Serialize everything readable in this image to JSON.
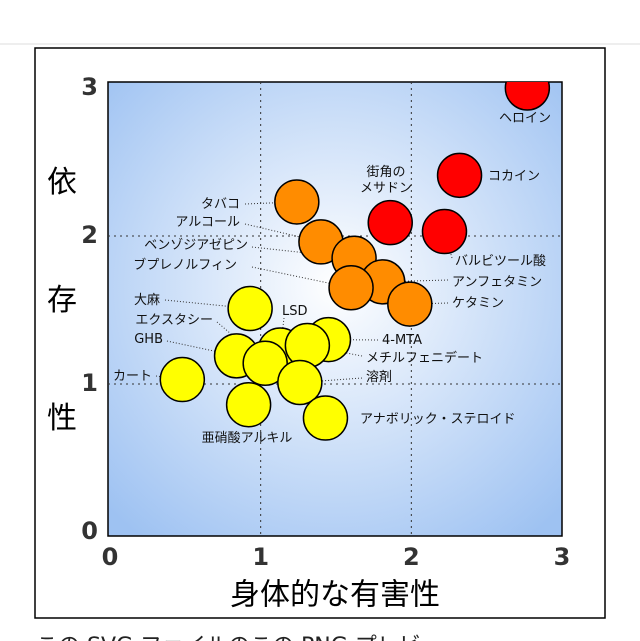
{
  "chart_data": {
    "type": "scatter",
    "xlabel": "身体的な有害性",
    "ylabel": "依存性",
    "xlim": [
      0,
      3
    ],
    "ylim": [
      0,
      3
    ],
    "xticks": [
      0,
      1,
      2,
      3
    ],
    "yticks": [
      0,
      1,
      2,
      3
    ],
    "grid": true,
    "points": [
      {
        "label": "ヘロイン",
        "x": 2.77,
        "y": 3.0,
        "color": "#ff0000"
      },
      {
        "label": "コカイン",
        "x": 2.32,
        "y": 2.41,
        "color": "#ff0000"
      },
      {
        "label": "街角の\nメサドン",
        "x": 1.86,
        "y": 2.09,
        "color": "#ff0000"
      },
      {
        "label": "バルビツール酸",
        "x": 2.22,
        "y": 2.03,
        "color": "#ff0000"
      },
      {
        "label": "タバコ",
        "x": 1.24,
        "y": 2.23,
        "color": "#ff8c00"
      },
      {
        "label": "アルコール",
        "x": 1.4,
        "y": 1.96,
        "color": "#ff8c00"
      },
      {
        "label": "ベンゾジアゼピン",
        "x": 1.62,
        "y": 1.85,
        "color": "#ff8c00"
      },
      {
        "label": "アンフェタミン",
        "x": 1.81,
        "y": 1.69,
        "color": "#ff8c00"
      },
      {
        "label": "ブプレノルフィン",
        "x": 1.6,
        "y": 1.65,
        "color": "#ff8c00"
      },
      {
        "label": "ケタミン",
        "x": 1.99,
        "y": 1.54,
        "color": "#ff8c00"
      },
      {
        "label": "大麻",
        "x": 0.93,
        "y": 1.51,
        "color": "#ffff00"
      },
      {
        "label": "4-MTA",
        "x": 1.45,
        "y": 1.3,
        "color": "#ffff00"
      },
      {
        "label": "LSD",
        "x": 1.13,
        "y": 1.23,
        "color": "#ffff00"
      },
      {
        "label": "メチルフェニデート",
        "x": 1.31,
        "y": 1.26,
        "color": "#ffff00"
      },
      {
        "label": "GHB",
        "x": 0.84,
        "y": 1.19,
        "color": "#ffff00"
      },
      {
        "label": "エクスタシー",
        "x": 1.03,
        "y": 1.14,
        "color": "#ffff00"
      },
      {
        "label": "カート",
        "x": 0.48,
        "y": 1.03,
        "color": "#ffff00"
      },
      {
        "label": "溶剤",
        "x": 1.26,
        "y": 1.01,
        "color": "#ffff00"
      },
      {
        "label": "亜硝酸アルキル",
        "x": 0.92,
        "y": 0.86,
        "color": "#ffff00"
      },
      {
        "label": "アナボリック・ステロイド",
        "x": 1.43,
        "y": 0.77,
        "color": "#ffff00"
      }
    ]
  },
  "caption": "この SVG ファイルのこの PNG プレビ"
}
